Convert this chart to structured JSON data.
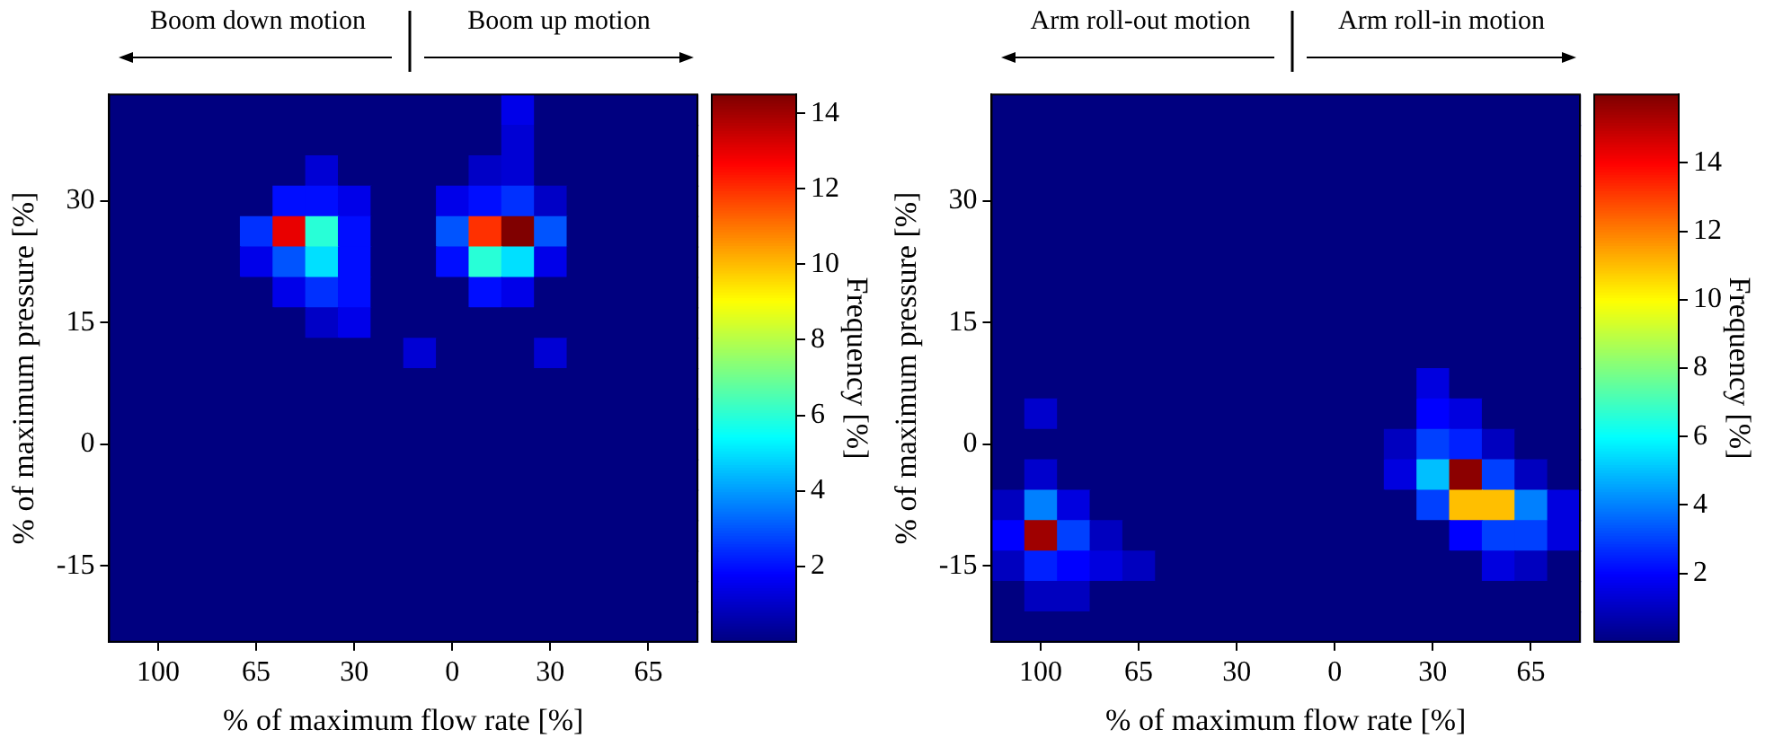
{
  "chart_data": [
    {
      "type": "heatmap",
      "annotations": [
        "Boom down motion",
        "Boom up motion"
      ],
      "xlabel": "% of maximum flow rate [%]",
      "ylabel": "% of maximum pressure [%]",
      "clabel": "Frequency [%]",
      "categories": [
        null,
        "100",
        null,
        null,
        "65",
        null,
        null,
        "30",
        null,
        null,
        "0",
        null,
        null,
        "30",
        null,
        null,
        "65",
        null
      ],
      "y_categories": [
        null,
        null,
        null,
        "30",
        null,
        null,
        null,
        "15",
        null,
        null,
        null,
        "0",
        null,
        null,
        null,
        "-15",
        null,
        null
      ],
      "clim": [
        0,
        14.5
      ],
      "cticks": [
        2,
        4,
        6,
        8,
        10,
        12,
        14
      ],
      "cells": [
        [
          0,
          0,
          0,
          0,
          0,
          0,
          0,
          0,
          0,
          0,
          0,
          0,
          1.5,
          0,
          0,
          0,
          0,
          0
        ],
        [
          0,
          0,
          0,
          0,
          0,
          0,
          0,
          0,
          0,
          0,
          0,
          0,
          1.2,
          0,
          0,
          0,
          0,
          0
        ],
        [
          0,
          0,
          0,
          0,
          0,
          0,
          1.2,
          0,
          0,
          0,
          0,
          1,
          1.2,
          0,
          0,
          0,
          0,
          0
        ],
        [
          0,
          0,
          0,
          0,
          0,
          2,
          2,
          1.5,
          0,
          0,
          1.5,
          2,
          2.5,
          1,
          0,
          0,
          0,
          0
        ],
        [
          0,
          0,
          0,
          0,
          2.5,
          13,
          6,
          2,
          0,
          0,
          3,
          12,
          14.5,
          3,
          0,
          0,
          0,
          0
        ],
        [
          0,
          0,
          0,
          0,
          1.5,
          3,
          5,
          2,
          0,
          0,
          2,
          6,
          5,
          1.5,
          0,
          0,
          0,
          0
        ],
        [
          0,
          0,
          0,
          0,
          0,
          1.5,
          2.5,
          2,
          0,
          0,
          0,
          2,
          1.5,
          0,
          0,
          0,
          0,
          0
        ],
        [
          0,
          0,
          0,
          0,
          0,
          0,
          1,
          1.5,
          0,
          0,
          0,
          0,
          0,
          0,
          0,
          0,
          0,
          0
        ],
        [
          0,
          0,
          0,
          0,
          0,
          0,
          0,
          0,
          0,
          1.2,
          0,
          0,
          0,
          1.2,
          0,
          0,
          0,
          0
        ],
        [
          0,
          0,
          0,
          0,
          0,
          0,
          0,
          0,
          0,
          0,
          0,
          0,
          0,
          0,
          0,
          0,
          0,
          0
        ],
        [
          0,
          0,
          0,
          0,
          0,
          0,
          0,
          0,
          0,
          0,
          0,
          0,
          0,
          0,
          0,
          0,
          0,
          0
        ],
        [
          0,
          0,
          0,
          0,
          0,
          0,
          0,
          0,
          0,
          0,
          0,
          0,
          0,
          0,
          0,
          0,
          0,
          0
        ],
        [
          0,
          0,
          0,
          0,
          0,
          0,
          0,
          0,
          0,
          0,
          0,
          0,
          0,
          0,
          0,
          0,
          0,
          0
        ],
        [
          0,
          0,
          0,
          0,
          0,
          0,
          0,
          0,
          0,
          0,
          0,
          0,
          0,
          0,
          0,
          0,
          0,
          0
        ],
        [
          0,
          0,
          0,
          0,
          0,
          0,
          0,
          0,
          0,
          0,
          0,
          0,
          0,
          0,
          0,
          0,
          0,
          0
        ],
        [
          0,
          0,
          0,
          0,
          0,
          0,
          0,
          0,
          0,
          0,
          0,
          0,
          0,
          0,
          0,
          0,
          0,
          0
        ],
        [
          0,
          0,
          0,
          0,
          0,
          0,
          0,
          0,
          0,
          0,
          0,
          0,
          0,
          0,
          0,
          0,
          0,
          0
        ],
        [
          0,
          0,
          0,
          0,
          0,
          0,
          0,
          0,
          0,
          0,
          0,
          0,
          0,
          0,
          0,
          0,
          0,
          0
        ]
      ]
    },
    {
      "type": "heatmap",
      "annotations": [
        "Arm roll-out motion",
        "Arm roll-in motion"
      ],
      "xlabel": "% of maximum flow rate [%]",
      "ylabel": "% of maximum pressure [%]",
      "clabel": "Frequency [%]",
      "categories": [
        null,
        "100",
        null,
        null,
        "65",
        null,
        null,
        "30",
        null,
        null,
        "0",
        null,
        null,
        "30",
        null,
        null,
        "65",
        null
      ],
      "y_categories": [
        null,
        null,
        null,
        "30",
        null,
        null,
        null,
        "15",
        null,
        null,
        null,
        "0",
        null,
        null,
        null,
        "-15",
        null,
        null
      ],
      "clim": [
        0,
        16
      ],
      "cticks": [
        2,
        4,
        6,
        8,
        10,
        12,
        14
      ],
      "cells": [
        [
          0,
          0,
          0,
          0,
          0,
          0,
          0,
          0,
          0,
          0,
          0,
          0,
          0,
          0,
          0,
          0,
          0,
          0
        ],
        [
          0,
          0,
          0,
          0,
          0,
          0,
          0,
          0,
          0,
          0,
          0,
          0,
          0,
          0,
          0,
          0,
          0,
          0
        ],
        [
          0,
          0,
          0,
          0,
          0,
          0,
          0,
          0,
          0,
          0,
          0,
          0,
          0,
          0,
          0,
          0,
          0,
          0
        ],
        [
          0,
          0,
          0,
          0,
          0,
          0,
          0,
          0,
          0,
          0,
          0,
          0,
          0,
          0,
          0,
          0,
          0,
          0
        ],
        [
          0,
          0,
          0,
          0,
          0,
          0,
          0,
          0,
          0,
          0,
          0,
          0,
          0,
          0,
          0,
          0,
          0,
          0
        ],
        [
          0,
          0,
          0,
          0,
          0,
          0,
          0,
          0,
          0,
          0,
          0,
          0,
          0,
          0,
          0,
          0,
          0,
          0
        ],
        [
          0,
          0,
          0,
          0,
          0,
          0,
          0,
          0,
          0,
          0,
          0,
          0,
          0,
          0,
          0,
          0,
          0,
          0
        ],
        [
          0,
          0,
          0,
          0,
          0,
          0,
          0,
          0,
          0,
          0,
          0,
          0,
          0,
          0,
          0,
          0,
          0,
          0
        ],
        [
          0,
          0,
          0,
          0,
          0,
          0,
          0,
          0,
          0,
          0,
          0,
          0,
          0,
          0,
          0,
          0,
          0,
          0
        ],
        [
          0,
          0,
          0,
          0,
          0,
          0,
          0,
          0,
          0,
          0,
          0,
          0,
          0,
          1.5,
          0,
          0,
          0,
          0
        ],
        [
          0,
          1.2,
          0,
          0,
          0,
          0,
          0,
          0,
          0,
          0,
          0,
          0,
          0,
          2,
          1.5,
          0,
          0,
          0
        ],
        [
          0,
          0,
          0,
          0,
          0,
          0,
          0,
          0,
          0,
          0,
          0,
          0,
          1,
          3,
          2.5,
          1,
          0,
          0
        ],
        [
          0,
          1.2,
          0,
          0,
          0,
          0,
          0,
          0,
          0,
          0,
          0,
          0,
          1.5,
          5,
          15.8,
          3,
          1,
          0
        ],
        [
          1,
          4,
          1.5,
          0,
          0,
          0,
          0,
          0,
          0,
          0,
          0,
          0,
          0,
          3,
          11,
          11,
          4,
          1.5
        ],
        [
          2,
          15.5,
          3,
          1,
          0,
          0,
          0,
          0,
          0,
          0,
          0,
          0,
          0,
          0,
          2,
          3,
          3,
          1.5
        ],
        [
          1,
          2.5,
          2,
          1.5,
          1,
          0,
          0,
          0,
          0,
          0,
          0,
          0,
          0,
          0,
          0,
          1.5,
          1,
          0
        ],
        [
          0,
          1,
          1,
          0,
          0,
          0,
          0,
          0,
          0,
          0,
          0,
          0,
          0,
          0,
          0,
          0,
          0,
          0
        ],
        [
          0,
          0,
          0,
          0,
          0,
          0,
          0,
          0,
          0,
          0,
          0,
          0,
          0,
          0,
          0,
          0,
          0,
          0
        ]
      ]
    }
  ]
}
